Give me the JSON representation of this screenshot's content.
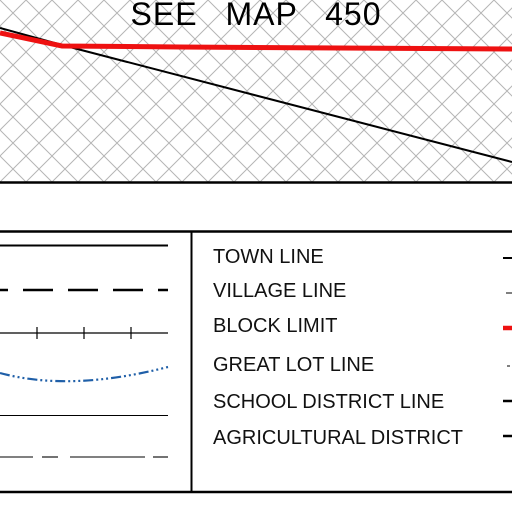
{
  "header": {
    "see_map_label": "SEE   MAP   450"
  },
  "colors": {
    "block_limit": "#ee1111",
    "great_lot": "#1f5fa8",
    "hatch": "#b5b5b5",
    "ink": "#000000"
  },
  "legend": {
    "items": [
      {
        "label": "TOWN LINE",
        "symbol": "solid-line"
      },
      {
        "label": "VILLAGE LINE",
        "symbol": "long-dash-line"
      },
      {
        "label": "BLOCK LIMIT",
        "symbol": "tick-line"
      },
      {
        "label": "GREAT LOT LINE",
        "symbol": "dash-dot-curve"
      },
      {
        "label": "SCHOOL DISTRICT LINE",
        "symbol": "thin-solid-line"
      },
      {
        "label": "AGRICULTURAL DISTRICT",
        "symbol": "dash-line"
      }
    ]
  }
}
